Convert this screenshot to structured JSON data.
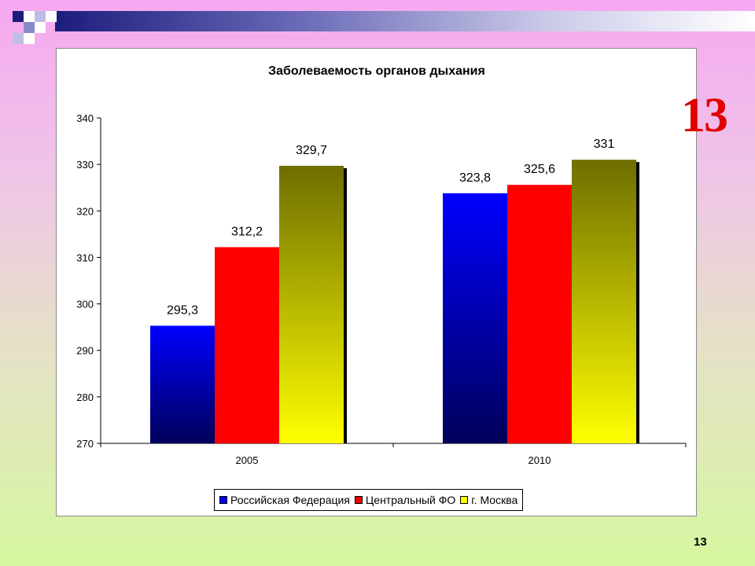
{
  "slide": {
    "big_number": "13",
    "page_number": "13"
  },
  "chart_data": {
    "type": "bar",
    "title": "Заболеваемость органов дыхания",
    "xlabel": "",
    "ylabel": "",
    "categories": [
      "2005",
      "2010"
    ],
    "series": [
      {
        "name": "Российская Федерация",
        "values": [
          295.3,
          323.8
        ],
        "labels": [
          "295,3",
          "323,8"
        ],
        "color": "#0000ee"
      },
      {
        "name": "Центральный ФО",
        "values": [
          312.2,
          325.6
        ],
        "labels": [
          "312,2",
          "325,6"
        ],
        "color": "#ee0000"
      },
      {
        "name": "г. Москва",
        "values": [
          329.7,
          331.0
        ],
        "labels": [
          "329,7",
          "331"
        ],
        "color": "#ffff00"
      }
    ],
    "ylim": [
      270,
      340
    ],
    "yticks": [
      "270",
      "280",
      "290",
      "300",
      "310",
      "320",
      "330",
      "340"
    ],
    "grid": false,
    "legend": "bottom"
  }
}
